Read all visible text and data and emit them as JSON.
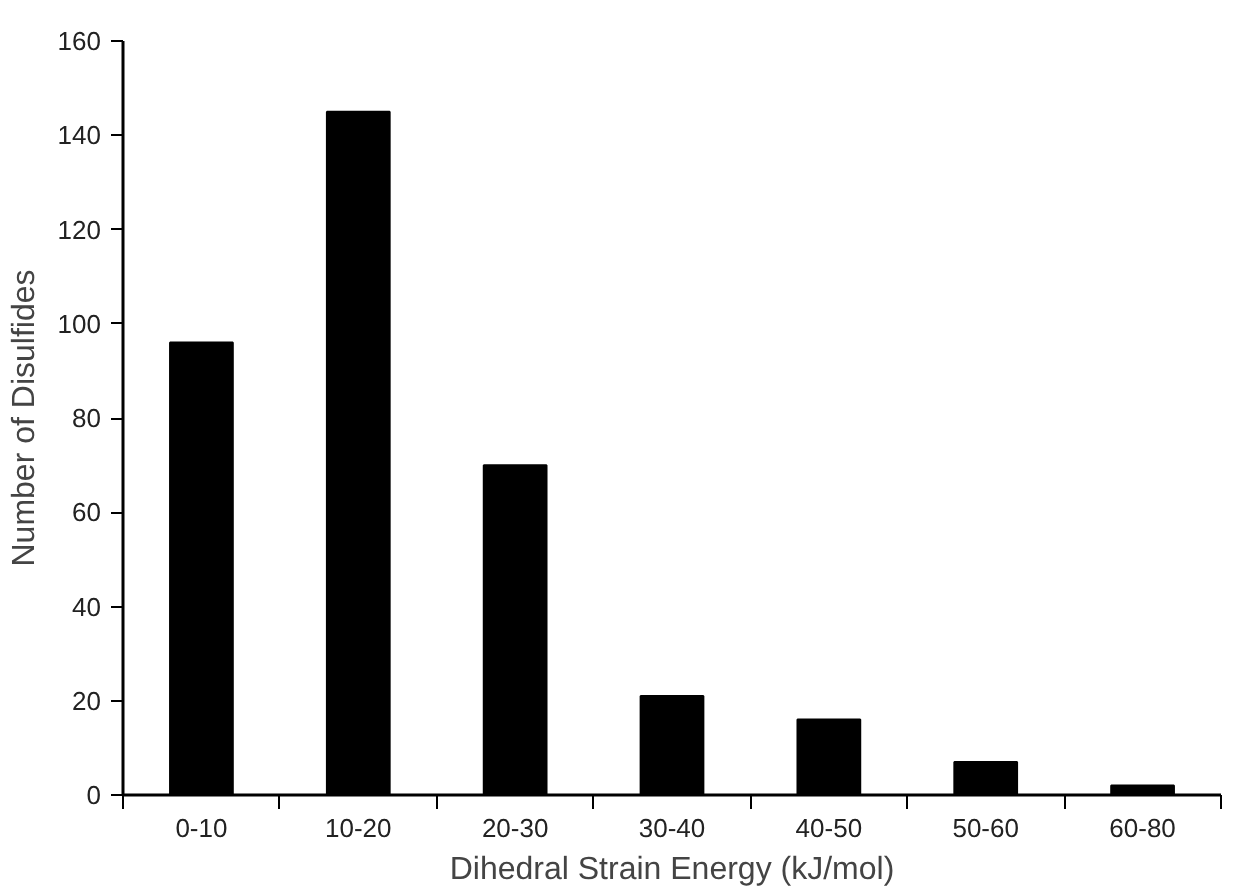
{
  "chart_data": {
    "type": "bar",
    "xlabel": "Dihedral Strain Energy (kJ/mol)",
    "ylabel": "Number of Disulfides",
    "categories": [
      "0-10",
      "10-20",
      "20-30",
      "30-40",
      "40-50",
      "50-60",
      "60-80"
    ],
    "values": [
      96,
      145,
      70,
      21,
      16,
      7,
      2
    ],
    "color": "#000000",
    "ylim": [
      0,
      160
    ],
    "yticks": [
      0,
      20,
      40,
      60,
      80,
      100,
      120,
      140,
      160
    ],
    "grid": false
  }
}
